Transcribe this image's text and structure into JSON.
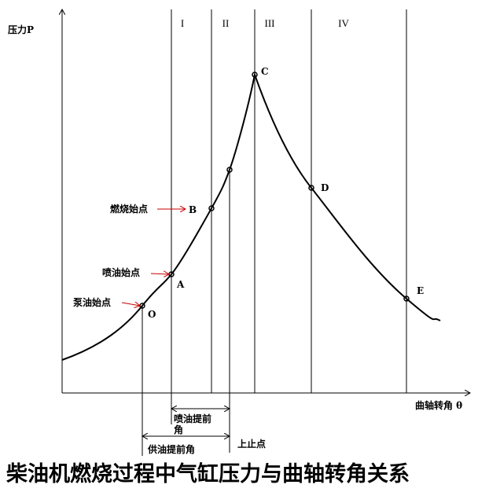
{
  "axes": {
    "y_label": "压力P",
    "x_label": "曲轴转角 θ"
  },
  "phases": [
    "I",
    "II",
    "III",
    "IV"
  ],
  "points": {
    "O": "O",
    "A": "A",
    "B": "B",
    "C": "C",
    "D": "D",
    "E": "E"
  },
  "annotations": {
    "combustion_start": "燃烧始点",
    "injection_start": "喷油始点",
    "pump_start": "泵油始点",
    "injection_advance": "喷油提前",
    "injection_advance_tail": "角",
    "tdc": "上止点",
    "supply_advance": "供油提前角"
  },
  "title": "柴油机燃烧过程中气缸压力与曲轴转角关系"
}
